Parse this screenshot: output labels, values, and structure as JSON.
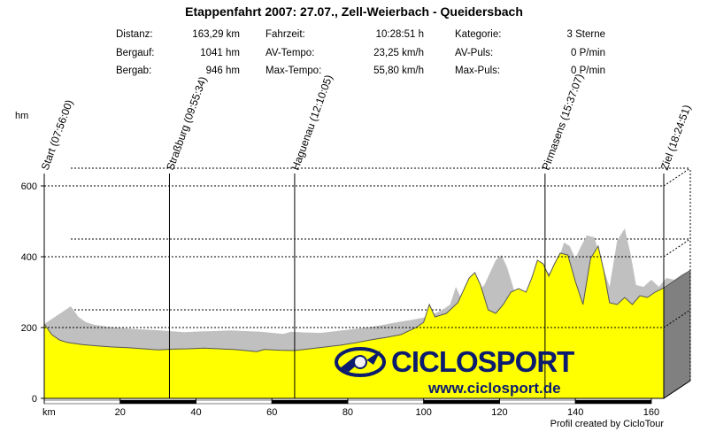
{
  "header": {
    "title": "Etappenfahrt 2007: 27.07., Zell-Weierbach - Queidersbach"
  },
  "stats": {
    "col1": [
      {
        "label": "Distanz:",
        "value": "163,29 km"
      },
      {
        "label": "Bergauf:",
        "value": "1041 hm"
      },
      {
        "label": "Bergab:",
        "value": "946 hm"
      }
    ],
    "col2": [
      {
        "label": "Fahrzeit:",
        "value": "10:28:51 h"
      },
      {
        "label": "AV-Tempo:",
        "value": "23,25 km/h"
      },
      {
        "label": "Max-Tempo:",
        "value": "55,80 km/h"
      }
    ],
    "col3": [
      {
        "label": "Kategorie:",
        "value": "3 Sterne"
      },
      {
        "label": "AV-Puls:",
        "value": "0 P/min"
      },
      {
        "label": "Max-Puls:",
        "value": "0 P/min"
      }
    ]
  },
  "logo": {
    "brand": "CICLOSPORT",
    "url": "www.ciclosport.de"
  },
  "credit": "Profil created by CicloTour",
  "chart_data": {
    "type": "area",
    "title": "Etappenfahrt 2007: 27.07., Zell-Weierbach - Queidersbach",
    "xlabel": "km",
    "ylabel": "hm",
    "xlim": [
      0,
      163.29
    ],
    "ylim": [
      0,
      600
    ],
    "xticks": [
      0,
      20,
      40,
      60,
      80,
      100,
      120,
      140,
      160
    ],
    "xtick_labels": [
      "",
      "20",
      "40",
      "60",
      "80",
      "100",
      "120",
      "140",
      "160"
    ],
    "yticks": [
      0,
      200,
      400,
      600
    ],
    "grid": "dotted horizontal at 200, 400, 600",
    "colors": {
      "fill": "#ffff00",
      "shadow": "#c0c0c0",
      "side": "#808080",
      "line": "#000000"
    },
    "waypoints": [
      {
        "km": 0,
        "label": "Start (07:56:00)"
      },
      {
        "km": 33,
        "label": "Straßburg (09:55:34)"
      },
      {
        "km": 66,
        "label": "Haguenau (12:10:05)"
      },
      {
        "km": 132,
        "label": "Pirmasens (15:37:07)"
      },
      {
        "km": 163.29,
        "label": "Ziel (18:24:51)"
      }
    ],
    "series": [
      {
        "name": "Höhe",
        "x": [
          0,
          2,
          4,
          6,
          8,
          10,
          14,
          18,
          22,
          26,
          30,
          34,
          38,
          42,
          46,
          50,
          54,
          56,
          58,
          62,
          66,
          70,
          74,
          78,
          82,
          86,
          90,
          94,
          98,
          100,
          101.5,
          103,
          106,
          109,
          112,
          113.5,
          115,
          117,
          119,
          121,
          123,
          125,
          127,
          128.5,
          130,
          131.5,
          133,
          134.5,
          136,
          138,
          140,
          142,
          144,
          146,
          147.5,
          149,
          151,
          153,
          155,
          157,
          159,
          161,
          163.29
        ],
        "values": [
          210,
          180,
          165,
          158,
          155,
          152,
          148,
          145,
          143,
          140,
          137,
          139,
          140,
          142,
          140,
          138,
          134,
          132,
          138,
          136,
          135,
          140,
          145,
          150,
          157,
          165,
          172,
          180,
          200,
          215,
          265,
          230,
          240,
          270,
          340,
          355,
          320,
          250,
          240,
          265,
          300,
          310,
          300,
          340,
          390,
          380,
          345,
          380,
          410,
          405,
          330,
          265,
          395,
          430,
          360,
          270,
          265,
          285,
          265,
          290,
          285,
          300,
          312
        ]
      }
    ]
  }
}
